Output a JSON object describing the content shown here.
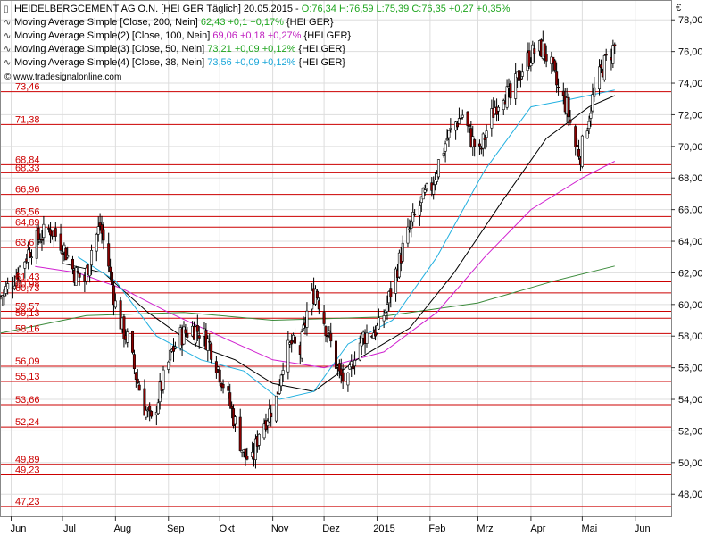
{
  "header": {
    "title": "HEIDELBERGCEMENT AG O.N. [HEI GER  Täglich] 20.05.2015 - ",
    "ohlc": "O:76,34 H:76,59 L:75,39 C:76,35 +0,27 +0,35%"
  },
  "legend": [
    {
      "label": "Moving Average Simple [Close, 200, Nein]",
      "value": "62,43 +0,1 +0,17%",
      "suffix": "{HEI GER}",
      "color": "#1ea51e"
    },
    {
      "label": "Moving Average Simple(2) [Close, 100, Nein]",
      "value": "69,06 +0,18 +0,27%",
      "suffix": "{HEI GER}",
      "color": "#c020c0"
    },
    {
      "label": "Moving Average Simple(3) [Close, 50, Nein]",
      "value": "73,21 +0,09 +0,12%",
      "suffix": "{HEI GER}",
      "color": "#1ea51e"
    },
    {
      "label": "Moving Average Simple(4) [Close, 38, Nein]",
      "value": "73,56 +0,09 +0,12%",
      "suffix": "{HEI GER}",
      "color": "#1aa6d8"
    }
  ],
  "watermark": "© www.tradesignalonline.com",
  "currency": "€",
  "colors": {
    "resistance": "#cc0000",
    "sma200": "#3a8a3a",
    "sma100": "#d020d0",
    "sma50": "#000000",
    "sma38": "#22b0e0",
    "candle_up": "#ffffff",
    "candle_down": "#8b0000",
    "grid": "#dddddd",
    "level_label": "#cc0000"
  },
  "chart_data": {
    "type": "candlestick",
    "y_axis": {
      "ylim": [
        46.6,
        79.2
      ],
      "ticks": [
        48,
        50,
        52,
        54,
        56,
        58,
        60,
        62,
        64,
        66,
        68,
        70,
        72,
        74,
        76,
        78
      ],
      "tick_labels": [
        "48,00",
        "50,00",
        "52,00",
        "54,00",
        "56,00",
        "58,00",
        "60,00",
        "62,00",
        "64,00",
        "66,00",
        "68,00",
        "70,00",
        "72,00",
        "74,00",
        "76,00",
        "78,00"
      ]
    },
    "x_axis": {
      "start": "2014-05-26",
      "end": "2015-06-22",
      "month_labels": [
        {
          "label": "Jun",
          "date": "2014-06-01"
        },
        {
          "label": "Jul",
          "date": "2014-07-01"
        },
        {
          "label": "Aug",
          "date": "2014-08-01"
        },
        {
          "label": "Sep",
          "date": "2014-09-01"
        },
        {
          "label": "Okt",
          "date": "2014-10-01"
        },
        {
          "label": "Nov",
          "date": "2014-11-01"
        },
        {
          "label": "Dez",
          "date": "2014-12-01"
        },
        {
          "label": "2015",
          "date": "2015-01-01"
        },
        {
          "label": "Feb",
          "date": "2015-02-01"
        },
        {
          "label": "Mrz",
          "date": "2015-03-01"
        },
        {
          "label": "Apr",
          "date": "2015-04-01"
        },
        {
          "label": "Mai",
          "date": "2015-05-01"
        },
        {
          "label": "Jun",
          "date": "2015-06-01"
        }
      ]
    },
    "horizontal_levels": [
      {
        "value": 76.35,
        "label": ""
      },
      {
        "value": 73.46,
        "label": "73,46"
      },
      {
        "value": 71.38,
        "label": "71,38"
      },
      {
        "value": 68.84,
        "label": "68,84"
      },
      {
        "value": 68.33,
        "label": "68,33"
      },
      {
        "value": 66.96,
        "label": "66,96"
      },
      {
        "value": 65.56,
        "label": "65,56"
      },
      {
        "value": 64.89,
        "label": "64,89"
      },
      {
        "value": 63.6,
        "label": "63,6"
      },
      {
        "value": 61.43,
        "label": "61,43"
      },
      {
        "value": 60.98,
        "label": "60,98"
      },
      {
        "value": 60.73,
        "label": "60,73"
      },
      {
        "value": 59.57,
        "label": "59,57"
      },
      {
        "value": 59.13,
        "label": "59,13"
      },
      {
        "value": 58.16,
        "label": "58,16"
      },
      {
        "value": 56.09,
        "label": "56,09"
      },
      {
        "value": 55.13,
        "label": "55,13"
      },
      {
        "value": 53.66,
        "label": "53,66"
      },
      {
        "value": 52.24,
        "label": "52,24"
      },
      {
        "value": 49.89,
        "label": "49,89"
      },
      {
        "value": 49.23,
        "label": "49,23"
      },
      {
        "value": 47.23,
        "label": "47,23"
      }
    ],
    "price_path": [
      [
        "2014-05-26",
        60.5
      ],
      [
        "2014-06-02",
        61.5
      ],
      [
        "2014-06-06",
        62.3
      ],
      [
        "2014-06-12",
        63.5
      ],
      [
        "2014-06-18",
        64.3
      ],
      [
        "2014-06-24",
        64.8
      ],
      [
        "2014-07-01",
        63.8
      ],
      [
        "2014-07-08",
        62.0
      ],
      [
        "2014-07-14",
        61.5
      ],
      [
        "2014-07-18",
        63.5
      ],
      [
        "2014-07-23",
        65.0
      ],
      [
        "2014-07-28",
        62.5
      ],
      [
        "2014-08-01",
        60.0
      ],
      [
        "2014-08-05",
        58.5
      ],
      [
        "2014-08-08",
        57.8
      ],
      [
        "2014-08-13",
        55.5
      ],
      [
        "2014-08-18",
        53.5
      ],
      [
        "2014-08-22",
        52.5
      ],
      [
        "2014-08-27",
        54.5
      ],
      [
        "2014-09-03",
        57.0
      ],
      [
        "2014-09-08",
        58.0
      ],
      [
        "2014-09-15",
        58.5
      ],
      [
        "2014-09-20",
        58.3
      ],
      [
        "2014-09-25",
        57.5
      ],
      [
        "2014-09-30",
        56.0
      ],
      [
        "2014-10-06",
        54.0
      ],
      [
        "2014-10-10",
        52.5
      ],
      [
        "2014-10-15",
        50.5
      ],
      [
        "2014-10-20",
        50.0
      ],
      [
        "2014-10-24",
        52.0
      ],
      [
        "2014-10-29",
        53.0
      ],
      [
        "2014-11-03",
        54.0
      ],
      [
        "2014-11-07",
        56.5
      ],
      [
        "2014-11-12",
        57.5
      ],
      [
        "2014-11-17",
        57.0
      ],
      [
        "2014-11-21",
        59.5
      ],
      [
        "2014-11-26",
        61.0
      ],
      [
        "2014-12-01",
        59.0
      ],
      [
        "2014-12-05",
        57.5
      ],
      [
        "2014-12-10",
        55.5
      ],
      [
        "2014-12-15",
        55.0
      ],
      [
        "2014-12-19",
        57.0
      ],
      [
        "2014-12-24",
        58.0
      ],
      [
        "2015-01-02",
        58.5
      ],
      [
        "2015-01-07",
        60.0
      ],
      [
        "2015-01-12",
        62.0
      ],
      [
        "2015-01-16",
        63.5
      ],
      [
        "2015-01-21",
        65.0
      ],
      [
        "2015-01-27",
        66.5
      ],
      [
        "2015-02-02",
        67.5
      ],
      [
        "2015-02-06",
        69.0
      ],
      [
        "2015-02-11",
        70.5
      ],
      [
        "2015-02-16",
        71.5
      ],
      [
        "2015-02-20",
        72.0
      ],
      [
        "2015-02-25",
        70.5
      ],
      [
        "2015-03-02",
        69.5
      ],
      [
        "2015-03-06",
        71.0
      ],
      [
        "2015-03-11",
        72.5
      ],
      [
        "2015-03-16",
        73.5
      ],
      [
        "2015-03-20",
        73.0
      ],
      [
        "2015-03-25",
        74.5
      ],
      [
        "2015-03-30",
        75.5
      ],
      [
        "2015-04-03",
        76.0
      ],
      [
        "2015-04-08",
        76.2
      ],
      [
        "2015-04-13",
        75.0
      ],
      [
        "2015-04-17",
        73.5
      ],
      [
        "2015-04-22",
        72.5
      ],
      [
        "2015-04-27",
        70.0
      ],
      [
        "2015-04-30",
        69.5
      ],
      [
        "2015-05-04",
        71.5
      ],
      [
        "2015-05-08",
        73.5
      ],
      [
        "2015-05-13",
        75.0
      ],
      [
        "2015-05-17",
        75.8
      ],
      [
        "2015-05-20",
        76.35
      ]
    ],
    "sma200": [
      [
        "2014-05-26",
        58.2
      ],
      [
        "2014-07-15",
        59.3
      ],
      [
        "2014-09-10",
        59.5
      ],
      [
        "2014-11-01",
        59.0
      ],
      [
        "2015-01-01",
        59.2
      ],
      [
        "2015-03-01",
        60.1
      ],
      [
        "2015-04-15",
        61.5
      ],
      [
        "2015-05-20",
        62.43
      ]
    ],
    "sma100": [
      [
        "2014-06-15",
        62.4
      ],
      [
        "2014-07-10",
        62.0
      ],
      [
        "2014-08-05",
        61.0
      ],
      [
        "2014-09-01",
        59.5
      ],
      [
        "2014-10-01",
        58.0
      ],
      [
        "2014-11-01",
        56.5
      ],
      [
        "2014-12-01",
        56.0
      ],
      [
        "2015-01-05",
        57.0
      ],
      [
        "2015-02-05",
        59.5
      ],
      [
        "2015-03-05",
        63.0
      ],
      [
        "2015-04-01",
        66.0
      ],
      [
        "2015-05-01",
        68.0
      ],
      [
        "2015-05-20",
        69.06
      ]
    ],
    "sma50": [
      [
        "2014-07-01",
        62.6
      ],
      [
        "2014-07-25",
        62.0
      ],
      [
        "2014-08-20",
        59.5
      ],
      [
        "2014-09-15",
        57.5
      ],
      [
        "2014-10-10",
        56.5
      ],
      [
        "2014-11-01",
        55.0
      ],
      [
        "2014-11-25",
        54.5
      ],
      [
        "2014-12-20",
        56.5
      ],
      [
        "2015-01-20",
        58.5
      ],
      [
        "2015-02-15",
        62.0
      ],
      [
        "2015-03-15",
        66.5
      ],
      [
        "2015-04-10",
        70.5
      ],
      [
        "2015-05-05",
        72.5
      ],
      [
        "2015-05-20",
        73.21
      ]
    ],
    "sma38": [
      [
        "2014-07-10",
        63.0
      ],
      [
        "2014-08-01",
        61.5
      ],
      [
        "2014-08-25",
        58.0
      ],
      [
        "2014-09-20",
        56.5
      ],
      [
        "2014-10-15",
        55.8
      ],
      [
        "2014-11-05",
        54.0
      ],
      [
        "2014-11-25",
        54.5
      ],
      [
        "2014-12-15",
        57.5
      ],
      [
        "2015-01-10",
        59.0
      ],
      [
        "2015-02-05",
        63.0
      ],
      [
        "2015-03-05",
        68.5
      ],
      [
        "2015-04-01",
        72.5
      ],
      [
        "2015-04-25",
        73.0
      ],
      [
        "2015-05-20",
        73.56
      ]
    ]
  }
}
